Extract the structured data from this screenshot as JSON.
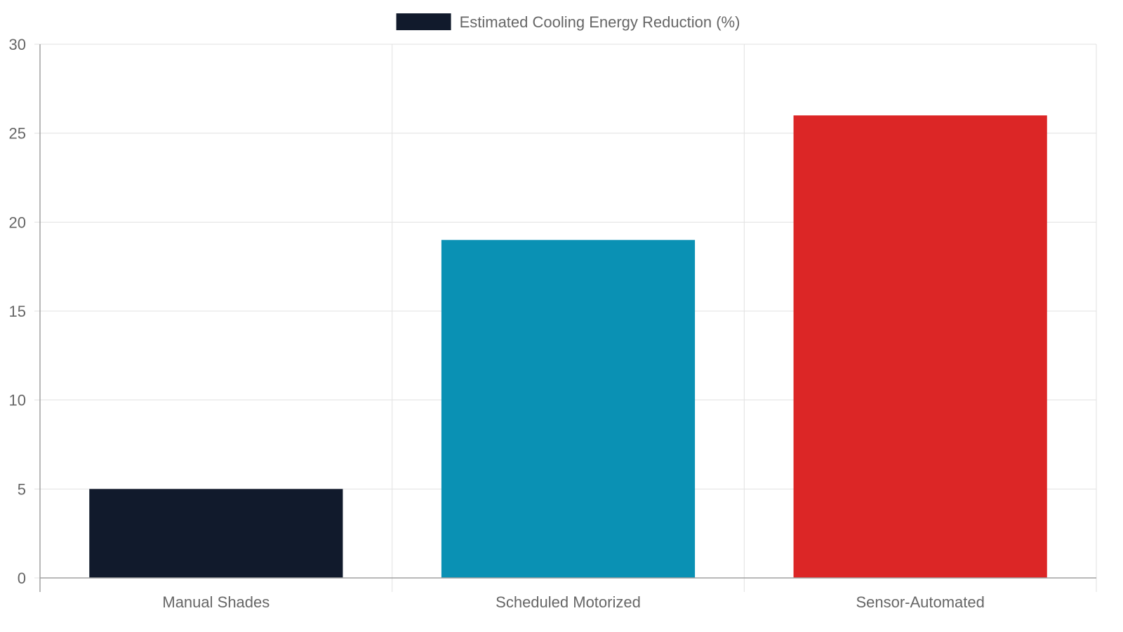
{
  "chart_data": {
    "type": "bar",
    "categories": [
      "Manual Shades",
      "Scheduled Motorized",
      "Sensor-Automated"
    ],
    "series": [
      {
        "name": "Estimated Cooling Energy Reduction (%)",
        "values": [
          5,
          19,
          26
        ],
        "colors": [
          "#111a2c",
          "#0a91b4",
          "#dc2626"
        ]
      }
    ],
    "ylim": [
      0,
      30
    ],
    "yticks": [
      0,
      5,
      10,
      15,
      20,
      25,
      30
    ],
    "grid": true,
    "legend_position": "top-center",
    "legend_color": "#111a2c",
    "text_color": "#666666",
    "grid_color": "#e1e1e1",
    "axis_color": "#a0a0a0"
  }
}
